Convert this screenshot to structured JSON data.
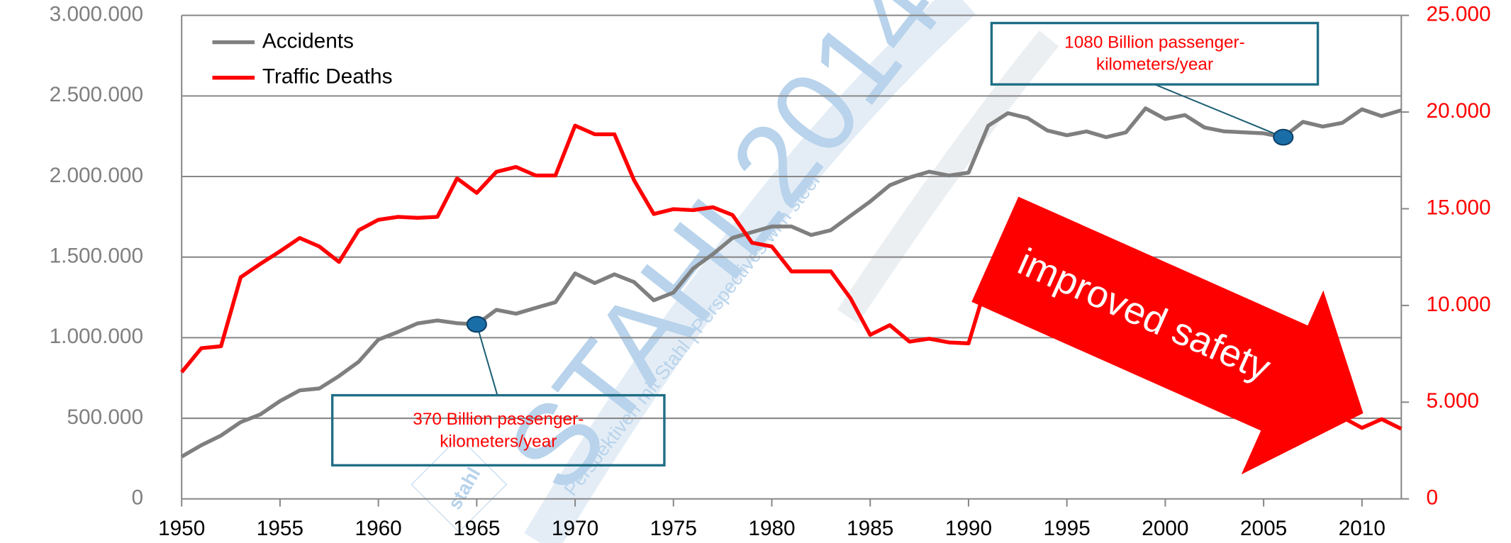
{
  "chart_data": {
    "type": "line",
    "x": [
      1950,
      1951,
      1952,
      1953,
      1954,
      1955,
      1956,
      1957,
      1958,
      1959,
      1960,
      1961,
      1962,
      1963,
      1964,
      1965,
      1966,
      1967,
      1968,
      1969,
      1970,
      1971,
      1972,
      1973,
      1974,
      1975,
      1976,
      1977,
      1978,
      1979,
      1980,
      1981,
      1982,
      1983,
      1984,
      1985,
      1986,
      1987,
      1988,
      1989,
      1990,
      1991,
      1992,
      1993,
      1994,
      1995,
      1996,
      1997,
      1998,
      1999,
      2000,
      2001,
      2002,
      2003,
      2004,
      2005,
      2006,
      2007,
      2008,
      2009,
      2010,
      2011,
      2012
    ],
    "series": [
      {
        "name": "Accidents",
        "color": "#7f7f7f",
        "axis": "y",
        "values": [
          262000,
          333000,
          393000,
          476000,
          524000,
          607000,
          673000,
          685000,
          762000,
          851000,
          988000,
          1036000,
          1089000,
          1107000,
          1090000,
          1083000,
          1173000,
          1149000,
          1185000,
          1220000,
          1399000,
          1339000,
          1393000,
          1345000,
          1232000,
          1280000,
          1429000,
          1518000,
          1619000,
          1655000,
          1690000,
          1690000,
          1637000,
          1667000,
          1756000,
          1845000,
          1946000,
          1994000,
          2030000,
          2006000,
          2024000,
          2315000,
          2393000,
          2363000,
          2286000,
          2256000,
          2280000,
          2244000,
          2274000,
          2423000,
          2357000,
          2381000,
          2304000,
          2280000,
          2274000,
          2268000,
          2244000,
          2339000,
          2310000,
          2333000,
          2417000,
          2375000,
          2411000
        ]
      },
      {
        "name": "Traffic Deaths",
        "color": "#ff0000",
        "axis": "y2",
        "values": [
          6550,
          7790,
          7890,
          11460,
          12150,
          12800,
          13490,
          13050,
          12250,
          13890,
          14430,
          14580,
          14530,
          14580,
          16570,
          15820,
          16910,
          17160,
          16720,
          16720,
          19300,
          18850,
          18850,
          16470,
          14730,
          14980,
          14930,
          15080,
          14680,
          13240,
          13050,
          11760,
          11760,
          11760,
          10370,
          8480,
          8980,
          8130,
          8280,
          8090,
          8040,
          11410,
          10760,
          10020,
          9870,
          9520,
          8830,
          8630,
          7890,
          7890,
          7540,
          7040,
          6900,
          6650,
          5900,
          5510,
          5260,
          5010,
          4610,
          4220,
          3670,
          4120,
          3620
        ]
      }
    ],
    "xlim": [
      1950,
      2012
    ],
    "xticks": [
      1950,
      1955,
      1960,
      1965,
      1970,
      1975,
      1980,
      1985,
      1990,
      1995,
      2000,
      2005,
      2010
    ],
    "ylim": [
      0,
      3000000
    ],
    "yticks": [
      0,
      {
        "value": 500000,
        "label": "500.000"
      },
      {
        "value": 1000000,
        "label": "1.000.000"
      },
      {
        "value": 1500000,
        "label": "1.500.000"
      },
      {
        "value": 2000000,
        "label": "2.000.000"
      },
      {
        "value": 2500000,
        "label": "2.500.000"
      },
      {
        "value": 3000000,
        "label": "3.000.000"
      }
    ],
    "y2lim": [
      0,
      25000
    ],
    "y2ticks": [
      0,
      {
        "value": 5000,
        "label": "5.000"
      },
      {
        "value": 10000,
        "label": "10.000"
      },
      {
        "value": 15000,
        "label": "15.000"
      },
      {
        "value": 20000,
        "label": "20.000"
      },
      {
        "value": 25000,
        "label": "25.000"
      }
    ],
    "grid": true,
    "legend": "top-left",
    "annotations": [
      {
        "x": 1965,
        "lines": [
          "370 Billion passenger-",
          "kilometers/year"
        ]
      },
      {
        "x": 2006,
        "lines": [
          "1080 Billion passenger-",
          "kilometers/year"
        ]
      },
      {
        "lines": [
          "improved safety"
        ]
      }
    ],
    "watermark": [
      "STAHL2014",
      "Perspektiven mit Stahl | Perspectives with steel",
      "stahl"
    ]
  }
}
